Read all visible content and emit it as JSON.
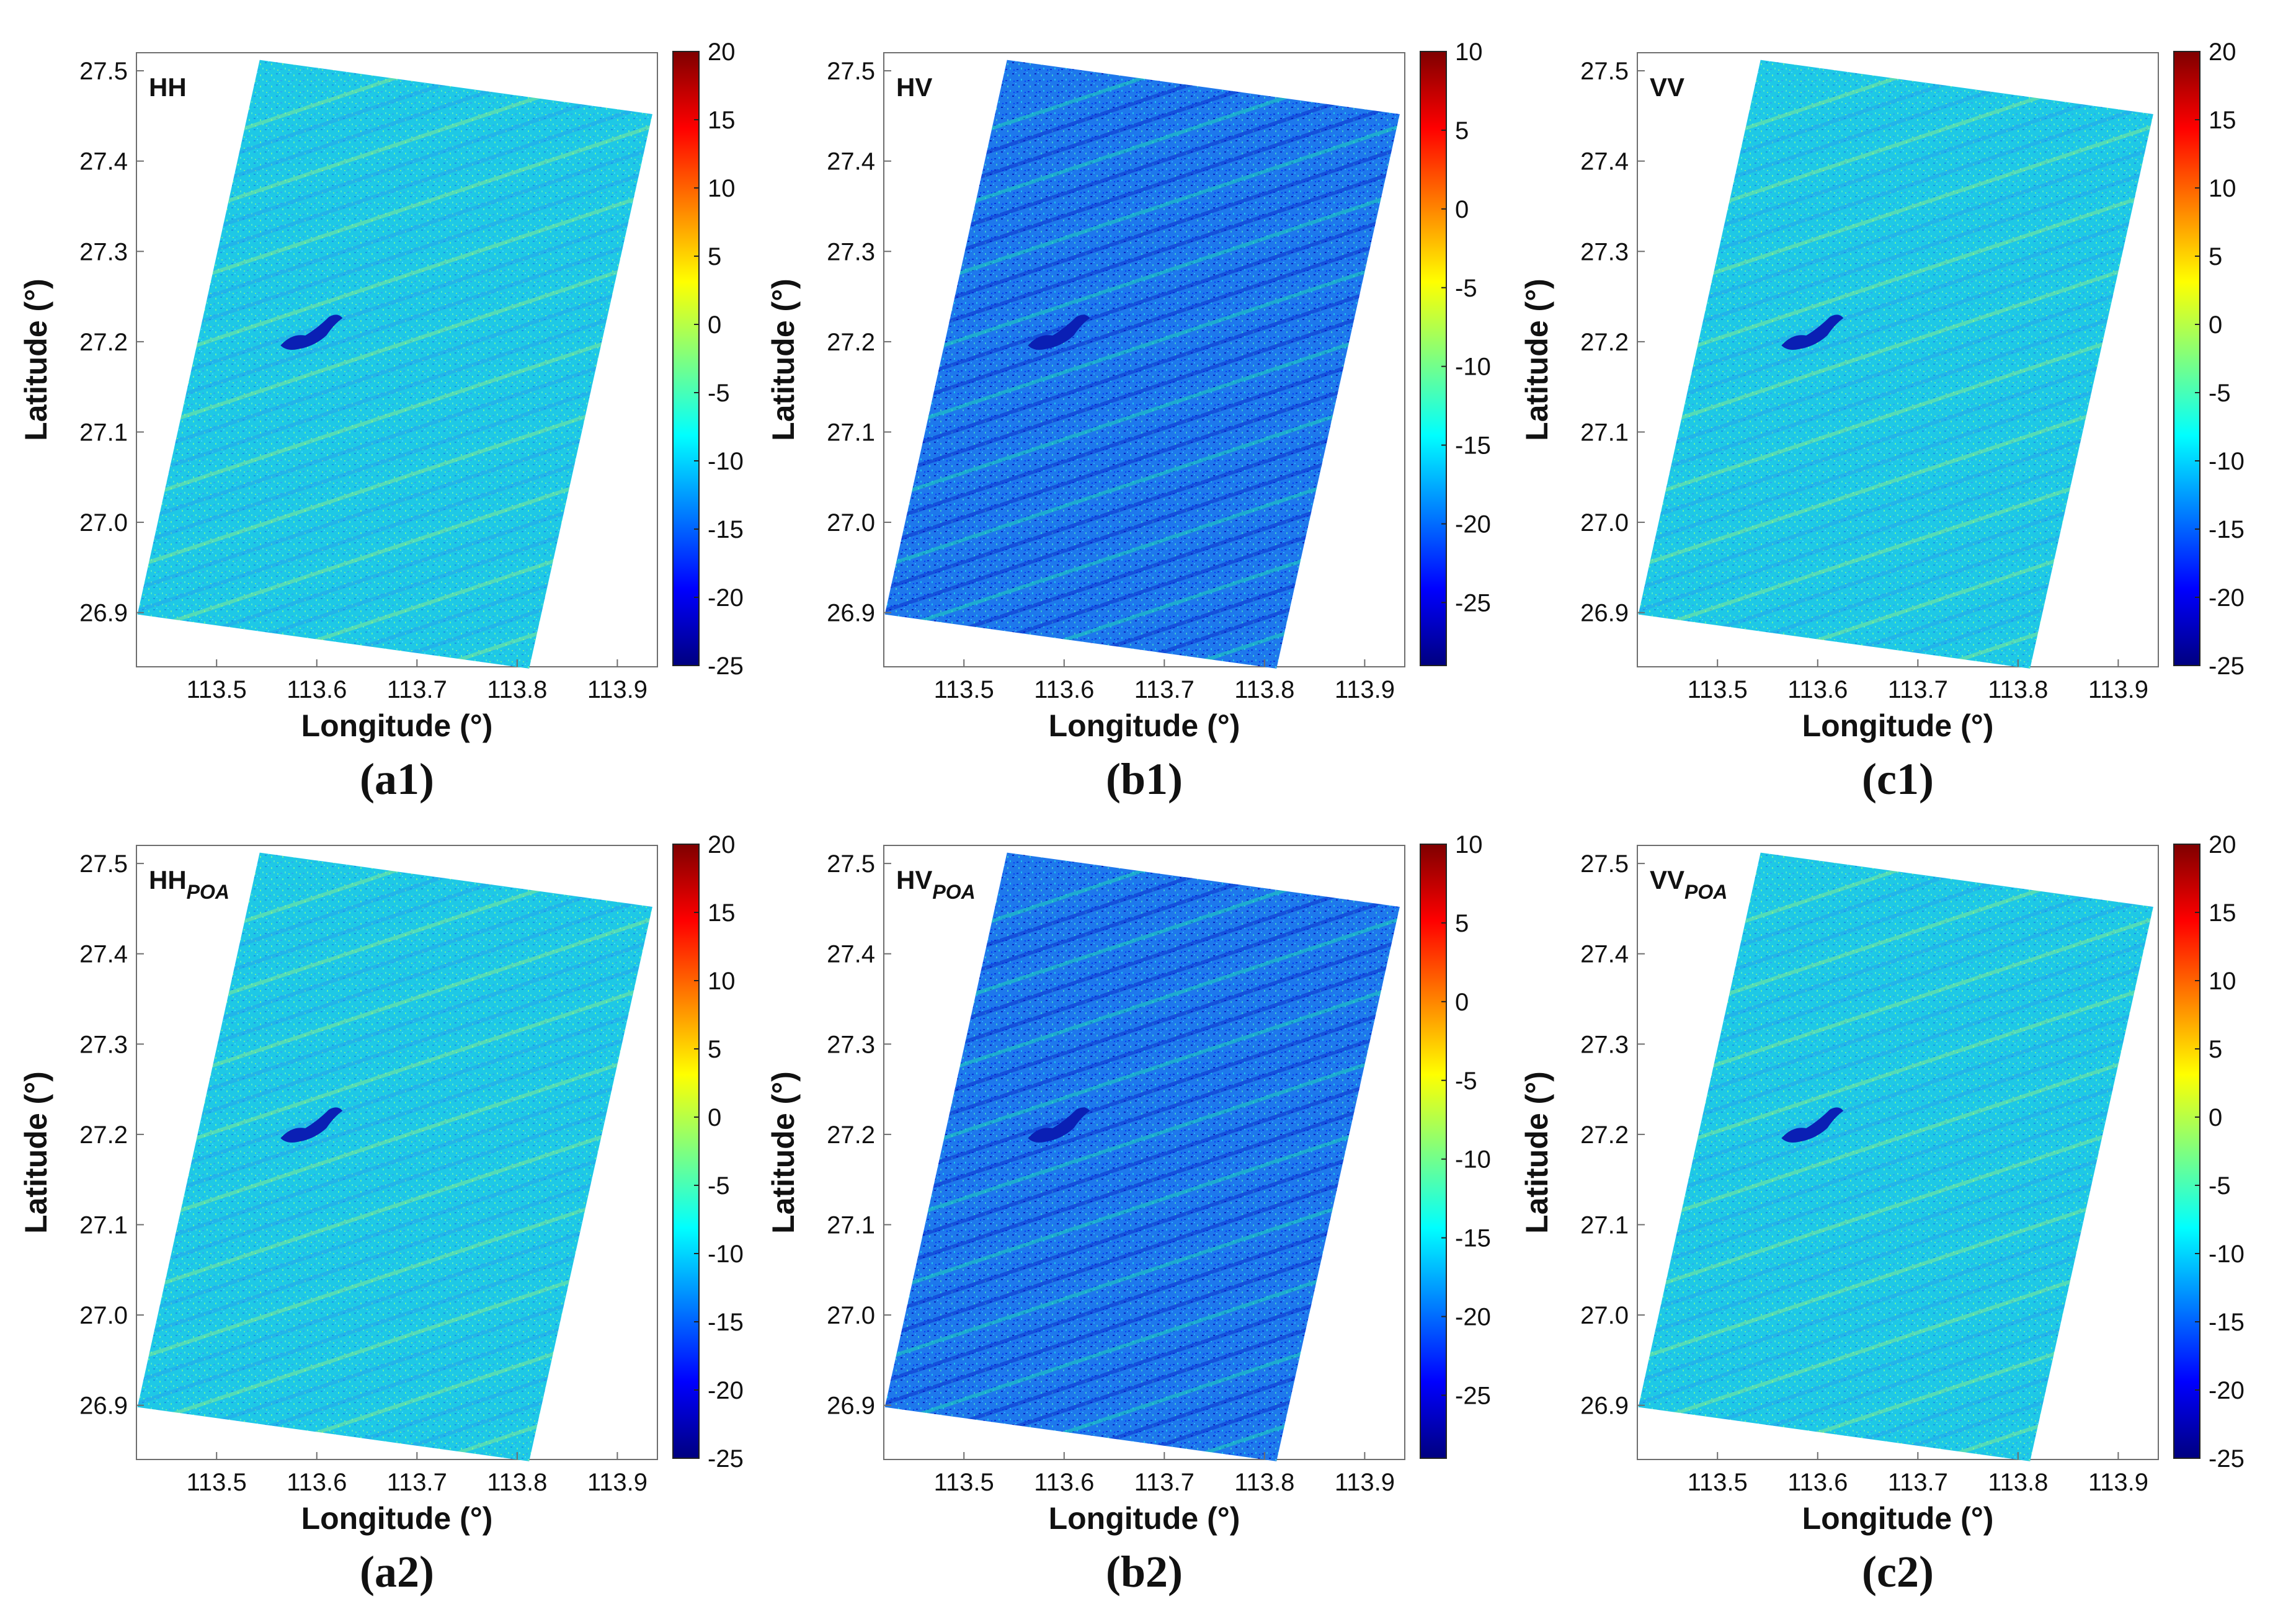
{
  "colors": {
    "jet": [
      "#00007f",
      "#0000ff",
      "#007fff",
      "#00ffff",
      "#7fff7f",
      "#ffff00",
      "#ff7f00",
      "#ff0000",
      "#7f0000"
    ],
    "pixel_base": "#1ec8e6",
    "water": "#0a1fb4"
  },
  "chart_data": [
    {
      "type": "heatmap",
      "id": "a1",
      "tag": "HH",
      "tag_sub": "",
      "caption": "(a1)",
      "xlabel": "Longitude (°)",
      "ylabel": "Latitude (°)",
      "xlim": [
        113.42,
        113.94
      ],
      "ylim": [
        26.84,
        27.52
      ],
      "xticks": [
        "113.5",
        "113.6",
        "113.7",
        "113.8",
        "113.9"
      ],
      "yticks": [
        "26.9",
        "27.0",
        "27.1",
        "27.2",
        "27.3",
        "27.4",
        "27.5"
      ],
      "colorbar": {
        "min": -25,
        "max": 20,
        "ticks": [
          "20",
          "15",
          "10",
          "5",
          "0",
          "-5",
          "-10",
          "-15",
          "-20",
          "-25"
        ]
      },
      "dominant_value_db": -9,
      "footprint_lonlat": [
        [
          113.543,
          27.512
        ],
        [
          113.935,
          27.452
        ],
        [
          113.812,
          26.838
        ],
        [
          113.421,
          26.898
        ]
      ]
    },
    {
      "type": "heatmap",
      "id": "b1",
      "tag": "HV",
      "tag_sub": "",
      "caption": "(b1)",
      "xlabel": "Longitude (°)",
      "ylabel": "Latitude (°)",
      "xlim": [
        113.42,
        113.94
      ],
      "ylim": [
        26.84,
        27.52
      ],
      "xticks": [
        "113.5",
        "113.6",
        "113.7",
        "113.8",
        "113.9"
      ],
      "yticks": [
        "26.9",
        "27.0",
        "27.1",
        "27.2",
        "27.3",
        "27.4",
        "27.5"
      ],
      "colorbar": {
        "min": -29,
        "max": 10,
        "ticks": [
          "10",
          "5",
          "0",
          "-5",
          "-10",
          "-15",
          "-20",
          "-25"
        ]
      },
      "dominant_value_db": -17,
      "footprint_lonlat": [
        [
          113.543,
          27.512
        ],
        [
          113.935,
          27.452
        ],
        [
          113.812,
          26.838
        ],
        [
          113.421,
          26.898
        ]
      ]
    },
    {
      "type": "heatmap",
      "id": "c1",
      "tag": "VV",
      "tag_sub": "",
      "caption": "(c1)",
      "xlabel": "Longitude (°)",
      "ylabel": "Latitude (°)",
      "xlim": [
        113.42,
        113.94
      ],
      "ylim": [
        26.84,
        27.52
      ],
      "xticks": [
        "113.5",
        "113.6",
        "113.7",
        "113.8",
        "113.9"
      ],
      "yticks": [
        "26.9",
        "27.0",
        "27.1",
        "27.2",
        "27.3",
        "27.4",
        "27.5"
      ],
      "colorbar": {
        "min": -25,
        "max": 20,
        "ticks": [
          "20",
          "15",
          "10",
          "5",
          "0",
          "-5",
          "-10",
          "-15",
          "-20",
          "-25"
        ]
      },
      "dominant_value_db": -9,
      "footprint_lonlat": [
        [
          113.543,
          27.512
        ],
        [
          113.935,
          27.452
        ],
        [
          113.812,
          26.838
        ],
        [
          113.421,
          26.898
        ]
      ]
    },
    {
      "type": "heatmap",
      "id": "a2",
      "tag": "HH",
      "tag_sub": "POA",
      "caption": "(a2)",
      "xlabel": "Longitude (°)",
      "ylabel": "Latitude (°)",
      "xlim": [
        113.42,
        113.94
      ],
      "ylim": [
        26.84,
        27.52
      ],
      "xticks": [
        "113.5",
        "113.6",
        "113.7",
        "113.8",
        "113.9"
      ],
      "yticks": [
        "26.9",
        "27.0",
        "27.1",
        "27.2",
        "27.3",
        "27.4",
        "27.5"
      ],
      "colorbar": {
        "min": -25,
        "max": 20,
        "ticks": [
          "20",
          "15",
          "10",
          "5",
          "0",
          "-5",
          "-10",
          "-15",
          "-20",
          "-25"
        ]
      },
      "dominant_value_db": -9,
      "footprint_lonlat": [
        [
          113.543,
          27.512
        ],
        [
          113.935,
          27.452
        ],
        [
          113.812,
          26.838
        ],
        [
          113.421,
          26.898
        ]
      ]
    },
    {
      "type": "heatmap",
      "id": "b2",
      "tag": "HV",
      "tag_sub": "POA",
      "caption": "(b2)",
      "xlabel": "Longitude (°)",
      "ylabel": "Latitude (°)",
      "xlim": [
        113.42,
        113.94
      ],
      "ylim": [
        26.84,
        27.52
      ],
      "xticks": [
        "113.5",
        "113.6",
        "113.7",
        "113.8",
        "113.9"
      ],
      "yticks": [
        "26.9",
        "27.0",
        "27.1",
        "27.2",
        "27.3",
        "27.4",
        "27.5"
      ],
      "colorbar": {
        "min": -29,
        "max": 10,
        "ticks": [
          "10",
          "5",
          "0",
          "-5",
          "-10",
          "-15",
          "-20",
          "-25"
        ]
      },
      "dominant_value_db": -17,
      "footprint_lonlat": [
        [
          113.543,
          27.512
        ],
        [
          113.935,
          27.452
        ],
        [
          113.812,
          26.838
        ],
        [
          113.421,
          26.898
        ]
      ]
    },
    {
      "type": "heatmap",
      "id": "c2",
      "tag": "VV",
      "tag_sub": "POA",
      "caption": "(c2)",
      "xlabel": "Longitude (°)",
      "ylabel": "Latitude (°)",
      "xlim": [
        113.42,
        113.94
      ],
      "ylim": [
        26.84,
        27.52
      ],
      "xticks": [
        "113.5",
        "113.6",
        "113.7",
        "113.8",
        "113.9"
      ],
      "yticks": [
        "26.9",
        "27.0",
        "27.1",
        "27.2",
        "27.3",
        "27.4",
        "27.5"
      ],
      "colorbar": {
        "min": -25,
        "max": 20,
        "ticks": [
          "20",
          "15",
          "10",
          "5",
          "0",
          "-5",
          "-10",
          "-15",
          "-20",
          "-25"
        ]
      },
      "dominant_value_db": -9,
      "footprint_lonlat": [
        [
          113.543,
          27.512
        ],
        [
          113.935,
          27.452
        ],
        [
          113.812,
          26.838
        ],
        [
          113.421,
          26.898
        ]
      ]
    }
  ]
}
